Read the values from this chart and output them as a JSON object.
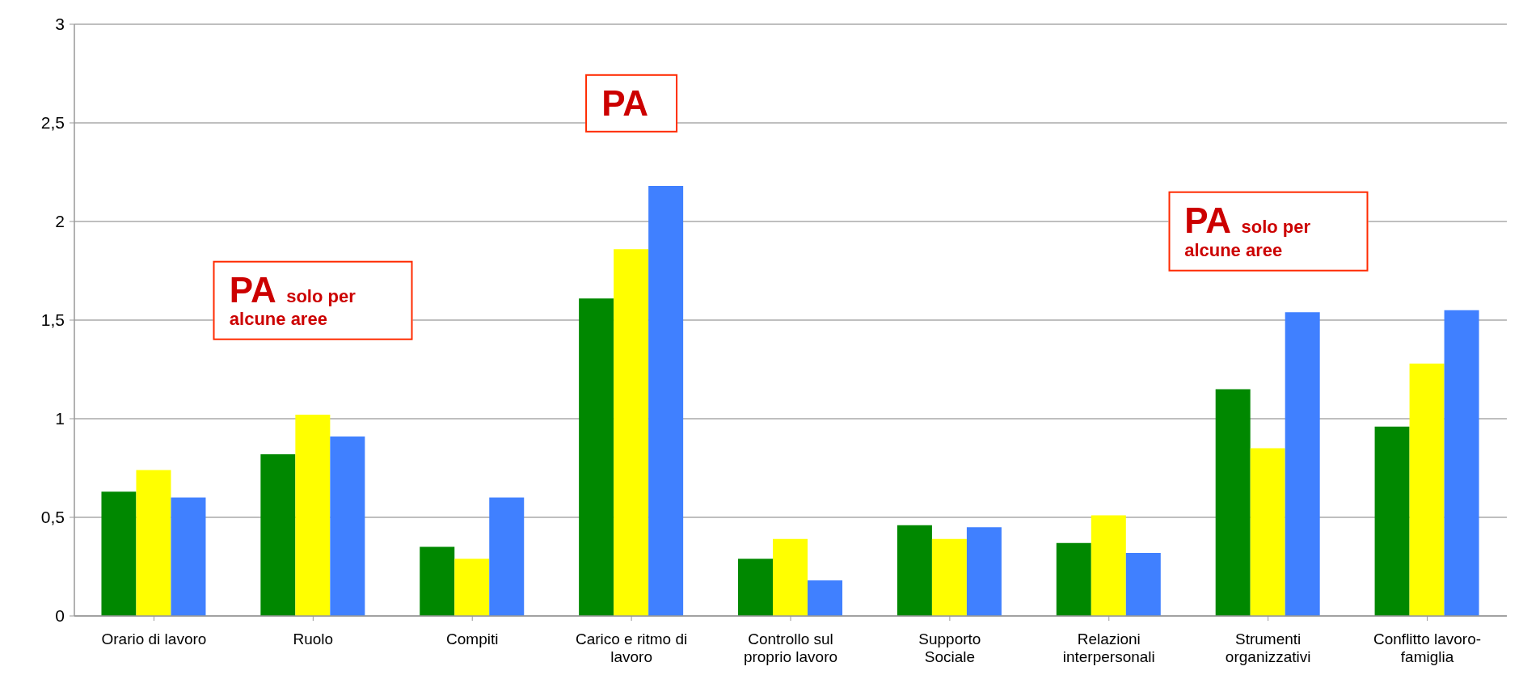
{
  "chart_data": {
    "type": "bar",
    "categories": [
      "Orario di lavoro",
      "Ruolo",
      "Compiti",
      "Carico e ritmo di lavoro",
      "Controllo sul proprio lavoro",
      "Supporto Sociale",
      "Relazioni interpersonali",
      "Strumenti organizzativi",
      "Conflitto lavoro-famiglia"
    ],
    "series": [
      {
        "color": "#008800",
        "values": [
          0.63,
          0.82,
          0.35,
          1.61,
          0.29,
          0.46,
          0.37,
          1.15,
          0.96
        ]
      },
      {
        "color": "#ffff00",
        "values": [
          0.74,
          1.02,
          0.29,
          1.86,
          0.39,
          0.39,
          0.51,
          0.85,
          1.28
        ]
      },
      {
        "color": "#4080ff",
        "values": [
          0.6,
          0.91,
          0.6,
          2.18,
          0.18,
          0.45,
          0.32,
          1.54,
          1.55
        ]
      }
    ],
    "ylim": [
      0,
      3
    ],
    "yticks": [
      0,
      {
        "value": 0.5,
        "label": "0,5"
      },
      1,
      {
        "value": 1.5,
        "label": "1,5"
      },
      2,
      {
        "value": 2.5,
        "label": "2,5"
      },
      3
    ],
    "grid": "y",
    "legend": false,
    "annotations": [
      "PA solo per alcune aree",
      "PA",
      "PA solo per alcune aree"
    ]
  }
}
